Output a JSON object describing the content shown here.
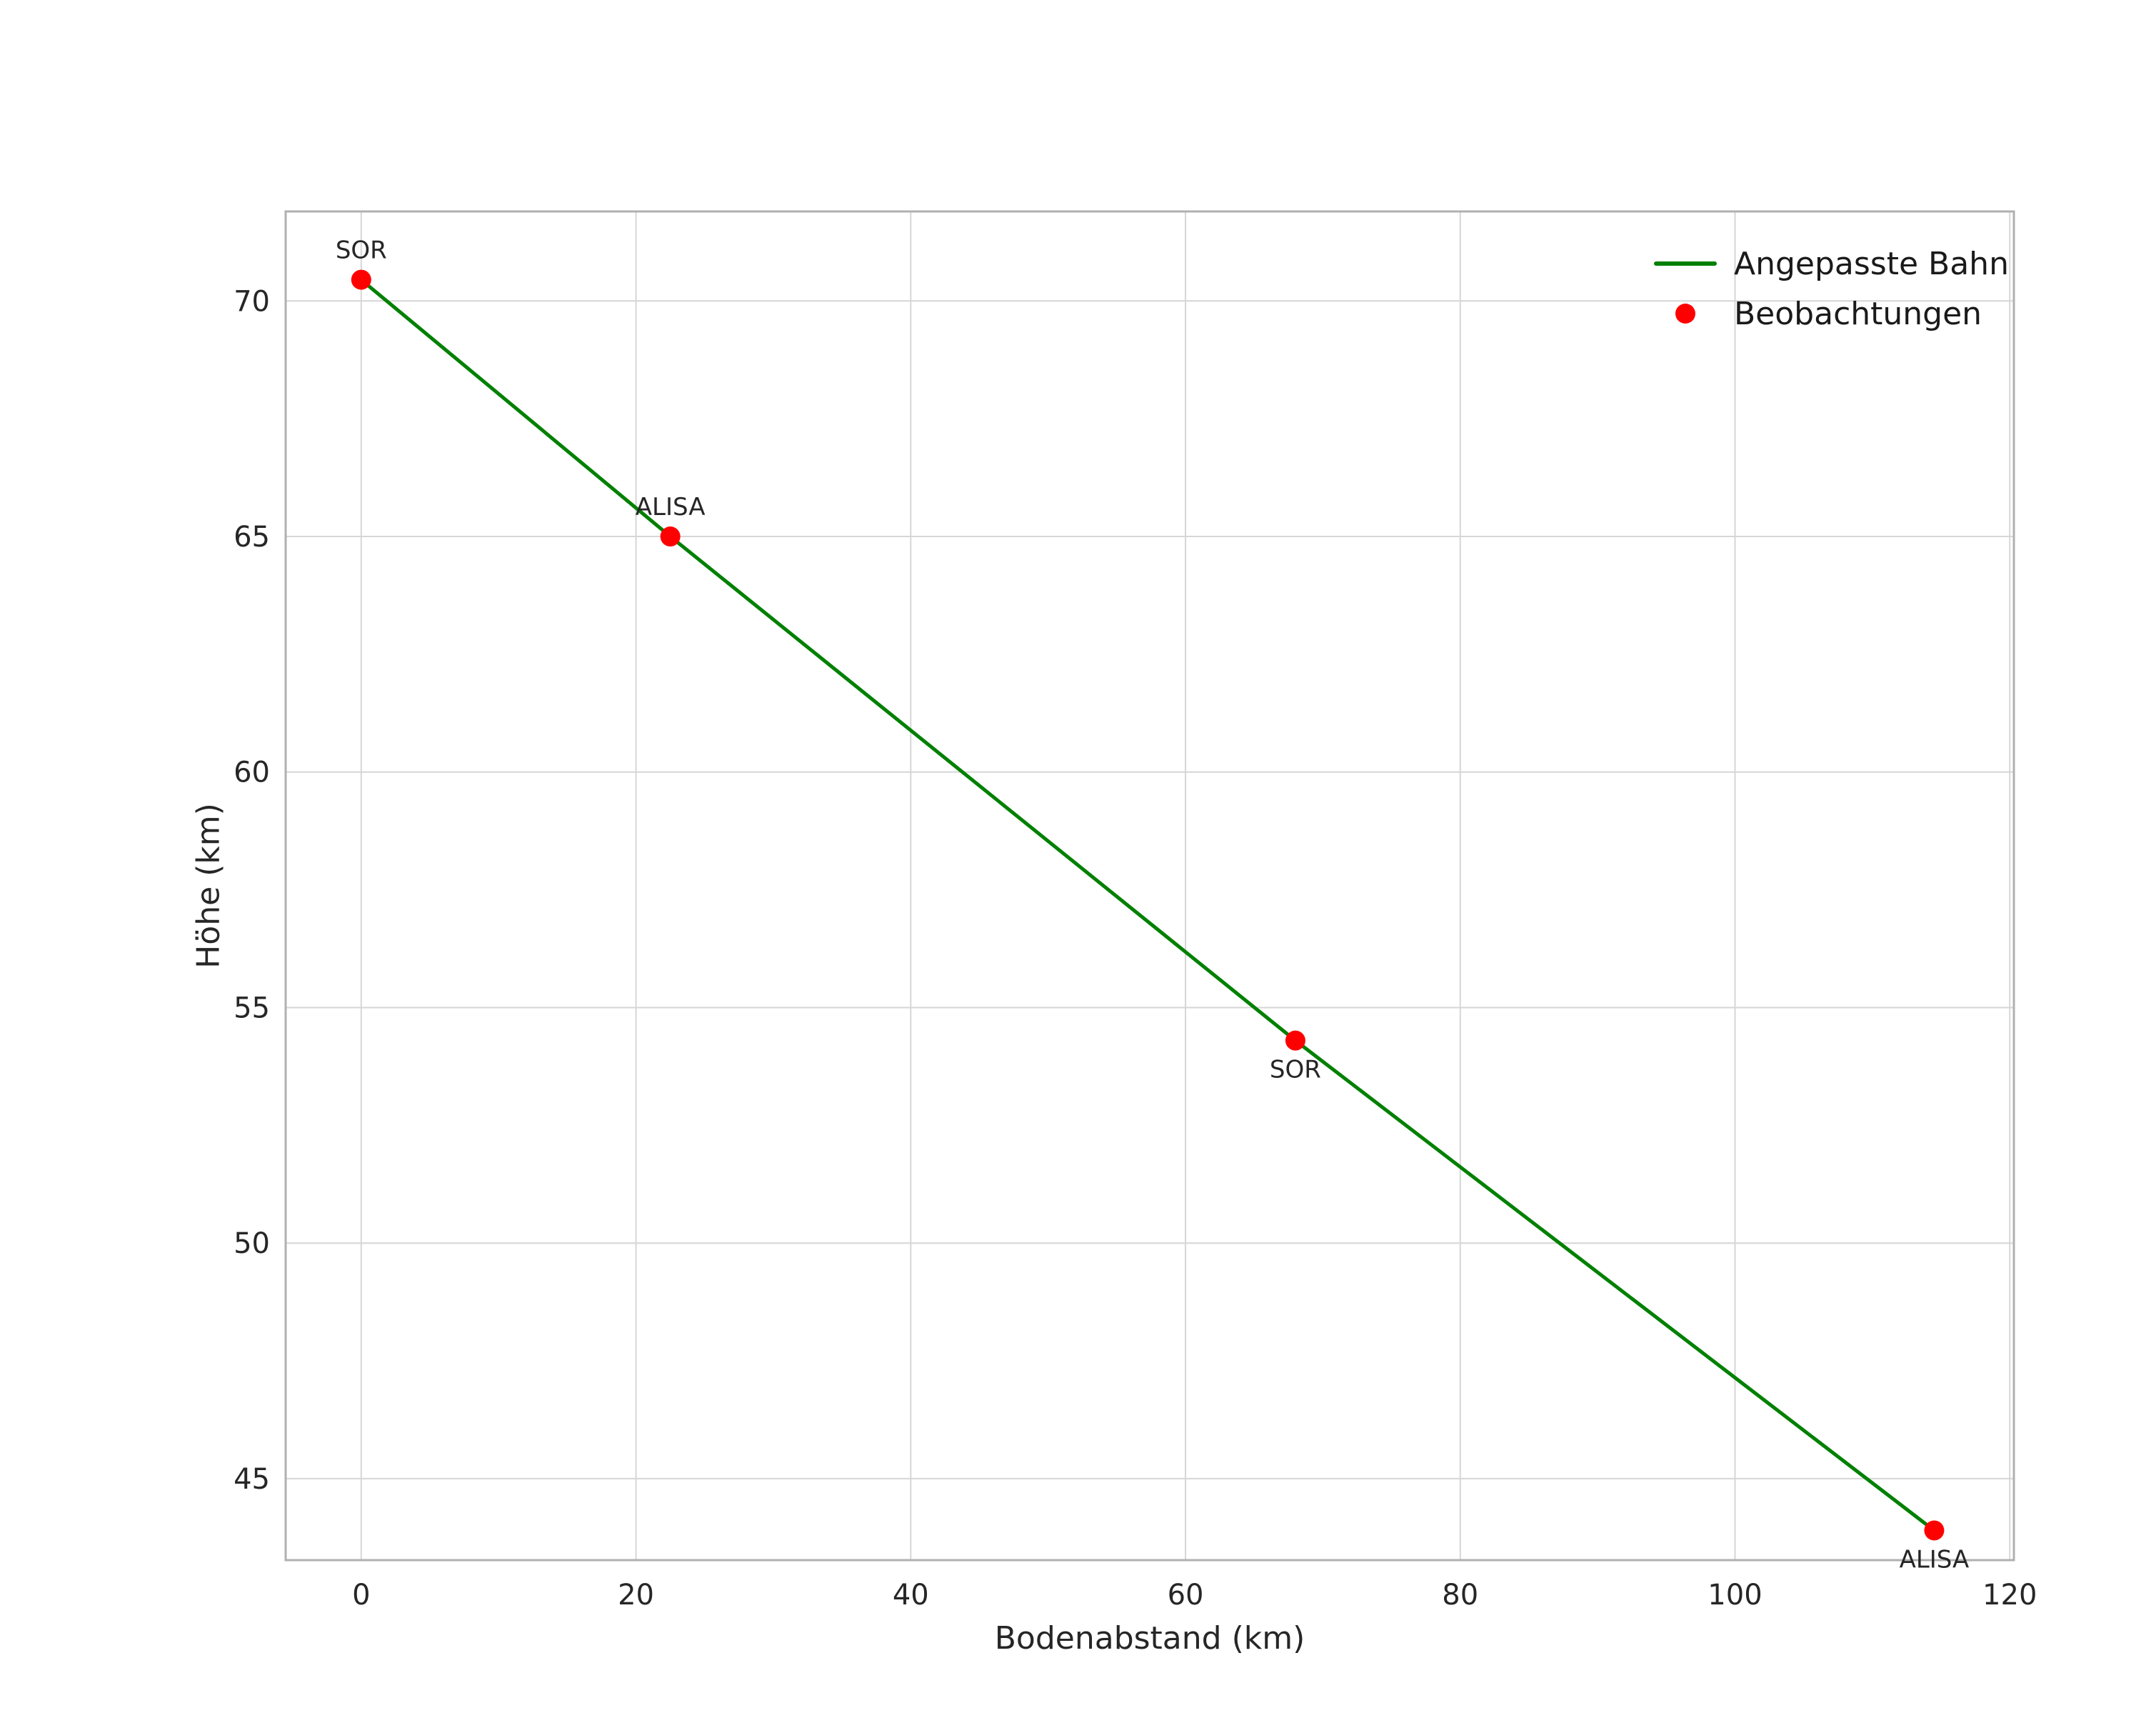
{
  "chart_data": {
    "type": "line",
    "title": "",
    "xlabel": "Bodenabstand (km)",
    "ylabel": "Höhe (km)",
    "xlim": [
      -5.5,
      120.3
    ],
    "ylim": [
      43.27,
      71.9
    ],
    "xticks": [
      0,
      20,
      40,
      60,
      80,
      100,
      120
    ],
    "yticks": [
      45,
      50,
      55,
      60,
      65,
      70
    ],
    "grid": true,
    "grid_color": "#d6d6d6",
    "frame_color": "#b0b0b0",
    "text_color": "#262626",
    "background": "#ffffff",
    "legend": {
      "position": "upper right",
      "entries": [
        {
          "label": "Angepasste Bahn",
          "type": "line",
          "color": "#008000"
        },
        {
          "label": "Beobachtungen",
          "type": "marker",
          "color": "#ff0000"
        }
      ]
    },
    "series": [
      {
        "name": "Angepasste Bahn",
        "type": "line",
        "color": "#008000",
        "linewidth": 5,
        "x": [
          0,
          22.5,
          68,
          114.5
        ],
        "y": [
          70.45,
          65.0,
          54.3,
          43.9
        ]
      },
      {
        "name": "Beobachtungen",
        "type": "scatter",
        "color": "#ff0000",
        "marker_radius": 14,
        "points": [
          {
            "x": 0,
            "y": 70.45,
            "label": "SOR",
            "label_pos": "above"
          },
          {
            "x": 22.5,
            "y": 65.0,
            "label": "ALISA",
            "label_pos": "above"
          },
          {
            "x": 68,
            "y": 54.3,
            "label": "SOR",
            "label_pos": "below"
          },
          {
            "x": 114.5,
            "y": 43.9,
            "label": "ALISA",
            "label_pos": "below"
          }
        ]
      }
    ]
  }
}
